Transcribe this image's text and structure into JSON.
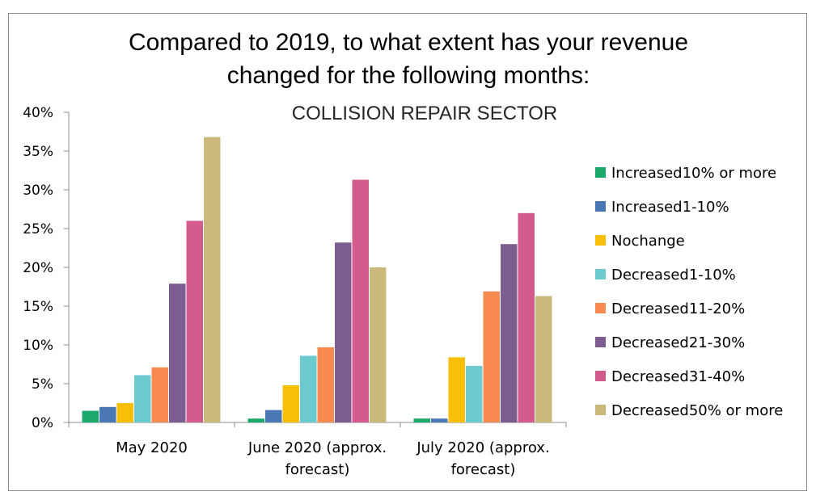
{
  "chart_data": {
    "type": "bar",
    "title_lines": [
      "Compared to 2019, to what extent has your revenue",
      "changed for the following months:"
    ],
    "subtitle": "COLLISION REPAIR SECTOR",
    "xlabel": "",
    "ylabel": "",
    "ylim": [
      0,
      40
    ],
    "y_ticks": [
      "0%",
      "5%",
      "10%",
      "15%",
      "20%",
      "25%",
      "30%",
      "35%",
      "40%"
    ],
    "grid": false,
    "legend_position": "right",
    "categories": [
      [
        "May 2020"
      ],
      [
        "June 2020 (approx.",
        "forecast)"
      ],
      [
        "July 2020 (approx.",
        "forecast)"
      ]
    ],
    "series": [
      {
        "name": "Increased10% or more",
        "color": "#1aa96b",
        "values": [
          1.5,
          0.5,
          0.5
        ]
      },
      {
        "name": "Increased1-10%",
        "color": "#4a78b4",
        "values": [
          2.0,
          1.6,
          0.5
        ]
      },
      {
        "name": "Nochange",
        "color": "#f7bf06",
        "values": [
          2.5,
          4.8,
          8.4
        ]
      },
      {
        "name": "Decreased1-10%",
        "color": "#6ccbd0",
        "values": [
          6.1,
          8.6,
          7.3
        ]
      },
      {
        "name": "Decreased11-20%",
        "color": "#f98b51",
        "values": [
          7.1,
          9.7,
          16.9
        ]
      },
      {
        "name": "Decreased21-30%",
        "color": "#7d5c90",
        "values": [
          17.9,
          23.2,
          23.0
        ]
      },
      {
        "name": "Decreased31-40%",
        "color": "#d35c8d",
        "values": [
          26.0,
          31.3,
          27.0
        ]
      },
      {
        "name": "Decreased50% or more",
        "color": "#cbb87b",
        "values": [
          36.8,
          20.0,
          16.3
        ]
      }
    ]
  }
}
